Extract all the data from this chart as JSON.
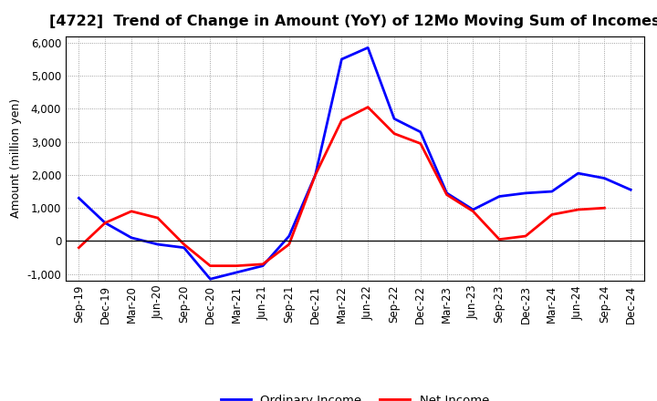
{
  "title": "[4722]  Trend of Change in Amount (YoY) of 12Mo Moving Sum of Incomes",
  "ylabel": "Amount (million yen)",
  "x_labels": [
    "Sep-19",
    "Dec-19",
    "Mar-20",
    "Jun-20",
    "Sep-20",
    "Dec-20",
    "Mar-21",
    "Jun-21",
    "Sep-21",
    "Dec-21",
    "Mar-22",
    "Jun-22",
    "Sep-22",
    "Dec-22",
    "Mar-23",
    "Jun-23",
    "Sep-23",
    "Dec-23",
    "Mar-24",
    "Jun-24",
    "Sep-24",
    "Dec-24"
  ],
  "ordinary_income": [
    1300,
    550,
    100,
    -100,
    -200,
    -1150,
    -950,
    -750,
    150,
    2000,
    5500,
    5850,
    3700,
    3300,
    1450,
    950,
    1350,
    1450,
    1500,
    2050,
    1900,
    1550
  ],
  "net_income": [
    -200,
    550,
    900,
    700,
    -100,
    -750,
    -750,
    -700,
    -100,
    2000,
    3650,
    4050,
    3250,
    2950,
    1400,
    900,
    50,
    150,
    800,
    950,
    1000,
    null
  ],
  "ordinary_color": "#0000ff",
  "net_color": "#ff0000",
  "background_color": "#ffffff",
  "grid_color": "#888888",
  "ylim": [
    -1200,
    6200
  ],
  "yticks": [
    -1000,
    0,
    1000,
    2000,
    3000,
    4000,
    5000,
    6000
  ],
  "legend_labels": [
    "Ordinary Income",
    "Net Income"
  ],
  "title_fontsize": 11.5,
  "axis_label_fontsize": 9,
  "tick_fontsize": 8.5
}
